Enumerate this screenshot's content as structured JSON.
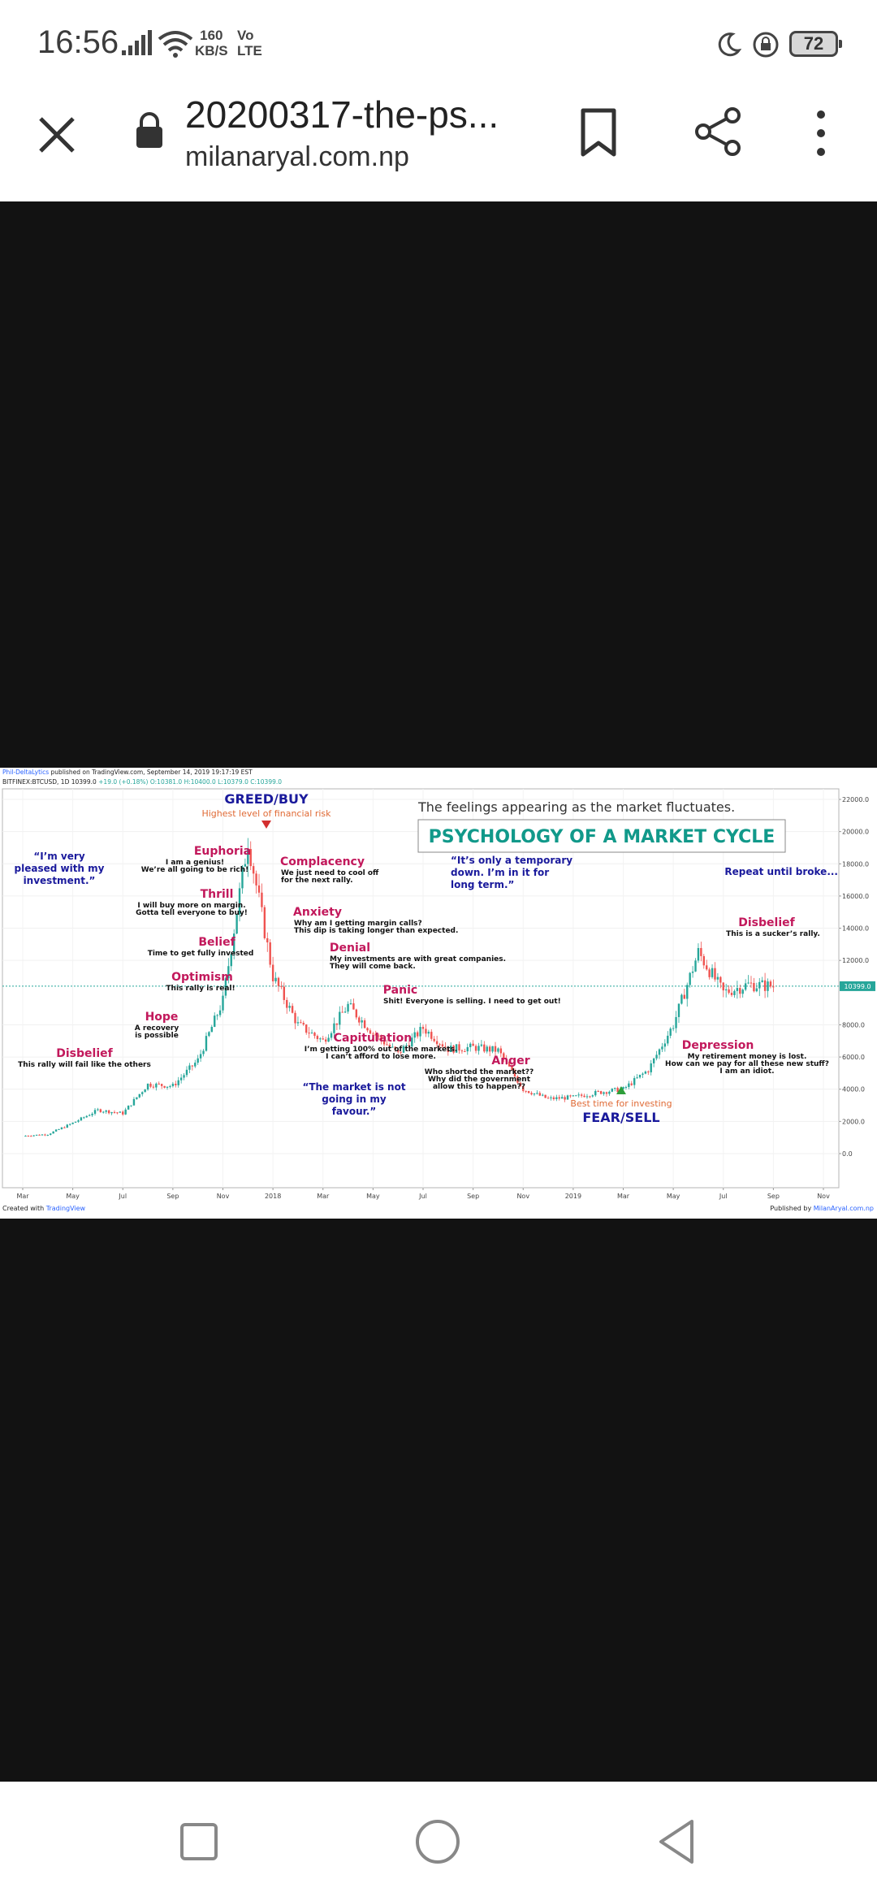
{
  "status_bar": {
    "time": "16:56",
    "net_speed_value": "160",
    "net_speed_unit": "KB/S",
    "volte_top": "Vo",
    "volte_bottom": "LTE",
    "battery": "72",
    "icons": [
      "signal-icon",
      "wifi-icon",
      "moon-icon",
      "lock-rotation-icon",
      "battery-icon"
    ]
  },
  "browser": {
    "title": "20200317-the-ps...",
    "url": "milanaryal.com.np",
    "icons": [
      "close-icon",
      "lock-icon",
      "bookmark-icon",
      "share-icon",
      "more-icon"
    ]
  },
  "chart": {
    "header_line1_brand": "Phil-DeltaLytics",
    "header_line1_rest": " published on TradingView.com, September 14, 2019 19:17:19 EST",
    "header_line2": "BITFINEX:BTCUSD, 1D  10399.0",
    "header_line2_change": "+19.0 (+0.18%)",
    "header_line2_ohlc": "O:10381.0  H:10400.0  L:10379.0  C:10399.0",
    "subtitle": "The feelings appearing as the market fluctuates.",
    "title": "PSYCHOLOGY OF A MARKET CYCLE",
    "greed": "GREED/BUY",
    "greed_note": "Highest level of financial risk",
    "fear": "FEAR/SELL",
    "fear_note": "Best time for investing",
    "repeat": "Repeat until broke...",
    "price_tag": "10399.0",
    "footer_left": "Created with",
    "footer_left_brand": "TradingView",
    "footer_right": "Published by",
    "footer_right_brand": "MilanAryal.com.np",
    "quotes": {
      "pleased": [
        "“I’m very",
        "pleased with my",
        "investment.”"
      ],
      "temporary": [
        "“It’s only a temporary",
        "down. I’m in it for",
        "long term.”"
      ],
      "not_favour": [
        "“The market is not",
        "going in my",
        "favour.”"
      ]
    },
    "stages": [
      {
        "name": "Disbelief",
        "lines": [
          "This rally will fail like the others"
        ]
      },
      {
        "name": "Hope",
        "lines": [
          "A recovery",
          "is possible"
        ]
      },
      {
        "name": "Optimism",
        "lines": [
          "This rally is real!"
        ]
      },
      {
        "name": "Belief",
        "lines": [
          "Time to get fully invested"
        ]
      },
      {
        "name": "Thrill",
        "lines": [
          "I will buy more on margin.",
          "Gotta tell everyone to buy!"
        ]
      },
      {
        "name": "Euphoria",
        "lines": [
          "I am a genius!",
          "We’re all going to be rich!"
        ]
      },
      {
        "name": "Complacency",
        "lines": [
          "We just need to cool off",
          "for the next rally."
        ]
      },
      {
        "name": "Anxiety",
        "lines": [
          "Why am I getting margin calls?",
          "This dip is taking longer than expected."
        ]
      },
      {
        "name": "Denial",
        "lines": [
          "My investments are with great companies.",
          "They will come back."
        ]
      },
      {
        "name": "Panic",
        "lines": [
          "Shit! Everyone is selling. I need to get out!"
        ]
      },
      {
        "name": "Capitulation",
        "lines": [
          "I’m getting 100% out of the markets.",
          "I can’t afford to lose more."
        ]
      },
      {
        "name": "Anger",
        "lines": [
          "Who shorted the market??",
          "Why did the government",
          "allow this to happen??"
        ]
      },
      {
        "name": "Depression",
        "lines": [
          "My retirement money is lost.",
          "How can we pay for all these new stuff?",
          "I am an idiot."
        ]
      },
      {
        "name": "Disbelief",
        "lines": [
          "This is a sucker’s rally."
        ]
      }
    ],
    "colors": {
      "stage": "#c2185b",
      "quote": "#1a1a9c",
      "title": "#11998a",
      "note": "#e06a35",
      "up_candle": "#26a69a",
      "down_candle": "#ef5350"
    }
  },
  "chart_data": {
    "type": "line",
    "title": "PSYCHOLOGY OF A MARKET CYCLE",
    "subtitle": "The feelings appearing as the market fluctuates.",
    "symbol": "BITFINEX:BTCUSD, 1D",
    "x": [
      "Mar",
      "May",
      "Jul",
      "Sep",
      "Nov",
      "2018",
      "Mar",
      "May",
      "Jul",
      "Sep",
      "Nov",
      "2019",
      "Mar",
      "May",
      "Jul",
      "Sep",
      "Nov"
    ],
    "y_ticks": [
      "22000.0",
      "20000.0",
      "18000.0",
      "16000.0",
      "14000.0",
      "12000.0",
      "10399.0",
      "8000.0",
      "6000.0",
      "4000.0",
      "2000.0",
      "0.0"
    ],
    "ylim": [
      0,
      22000
    ],
    "series": [
      {
        "name": "",
        "points": [
          [
            "Mar 2017",
            1100
          ],
          [
            "Apr 2017",
            1200
          ],
          [
            "May 2017",
            1900
          ],
          [
            "Jun 2017",
            2700
          ],
          [
            "Jul 2017",
            2500
          ],
          [
            "Aug 2017",
            4300
          ],
          [
            "Sep 2017",
            4200
          ],
          [
            "Oct 2017",
            5800
          ],
          [
            "Nov 2017",
            9500
          ],
          [
            "Dec 2017",
            19500
          ],
          [
            "Jan 2018",
            11000
          ],
          [
            "Feb 2018",
            8000
          ],
          [
            "Mar 2018",
            7000
          ],
          [
            "Apr 2018",
            9200
          ],
          [
            "May 2018",
            7500
          ],
          [
            "Jun 2018",
            6200
          ],
          [
            "Jul 2018",
            7800
          ],
          [
            "Aug 2018",
            6500
          ],
          [
            "Sep 2018",
            6600
          ],
          [
            "Oct 2018",
            6400
          ],
          [
            "Nov 2018",
            4000
          ],
          [
            "Dec 2018",
            3400
          ],
          [
            "Jan 2019",
            3500
          ],
          [
            "Feb 2019",
            3800
          ],
          [
            "Mar 2019",
            4000
          ],
          [
            "Apr 2019",
            5200
          ],
          [
            "May 2019",
            8000
          ],
          [
            "Jun 2019",
            12500
          ],
          [
            "Jul 2019",
            10000
          ],
          [
            "Aug 2019",
            10500
          ],
          [
            "Sep 2019",
            10399
          ]
        ]
      }
    ]
  }
}
